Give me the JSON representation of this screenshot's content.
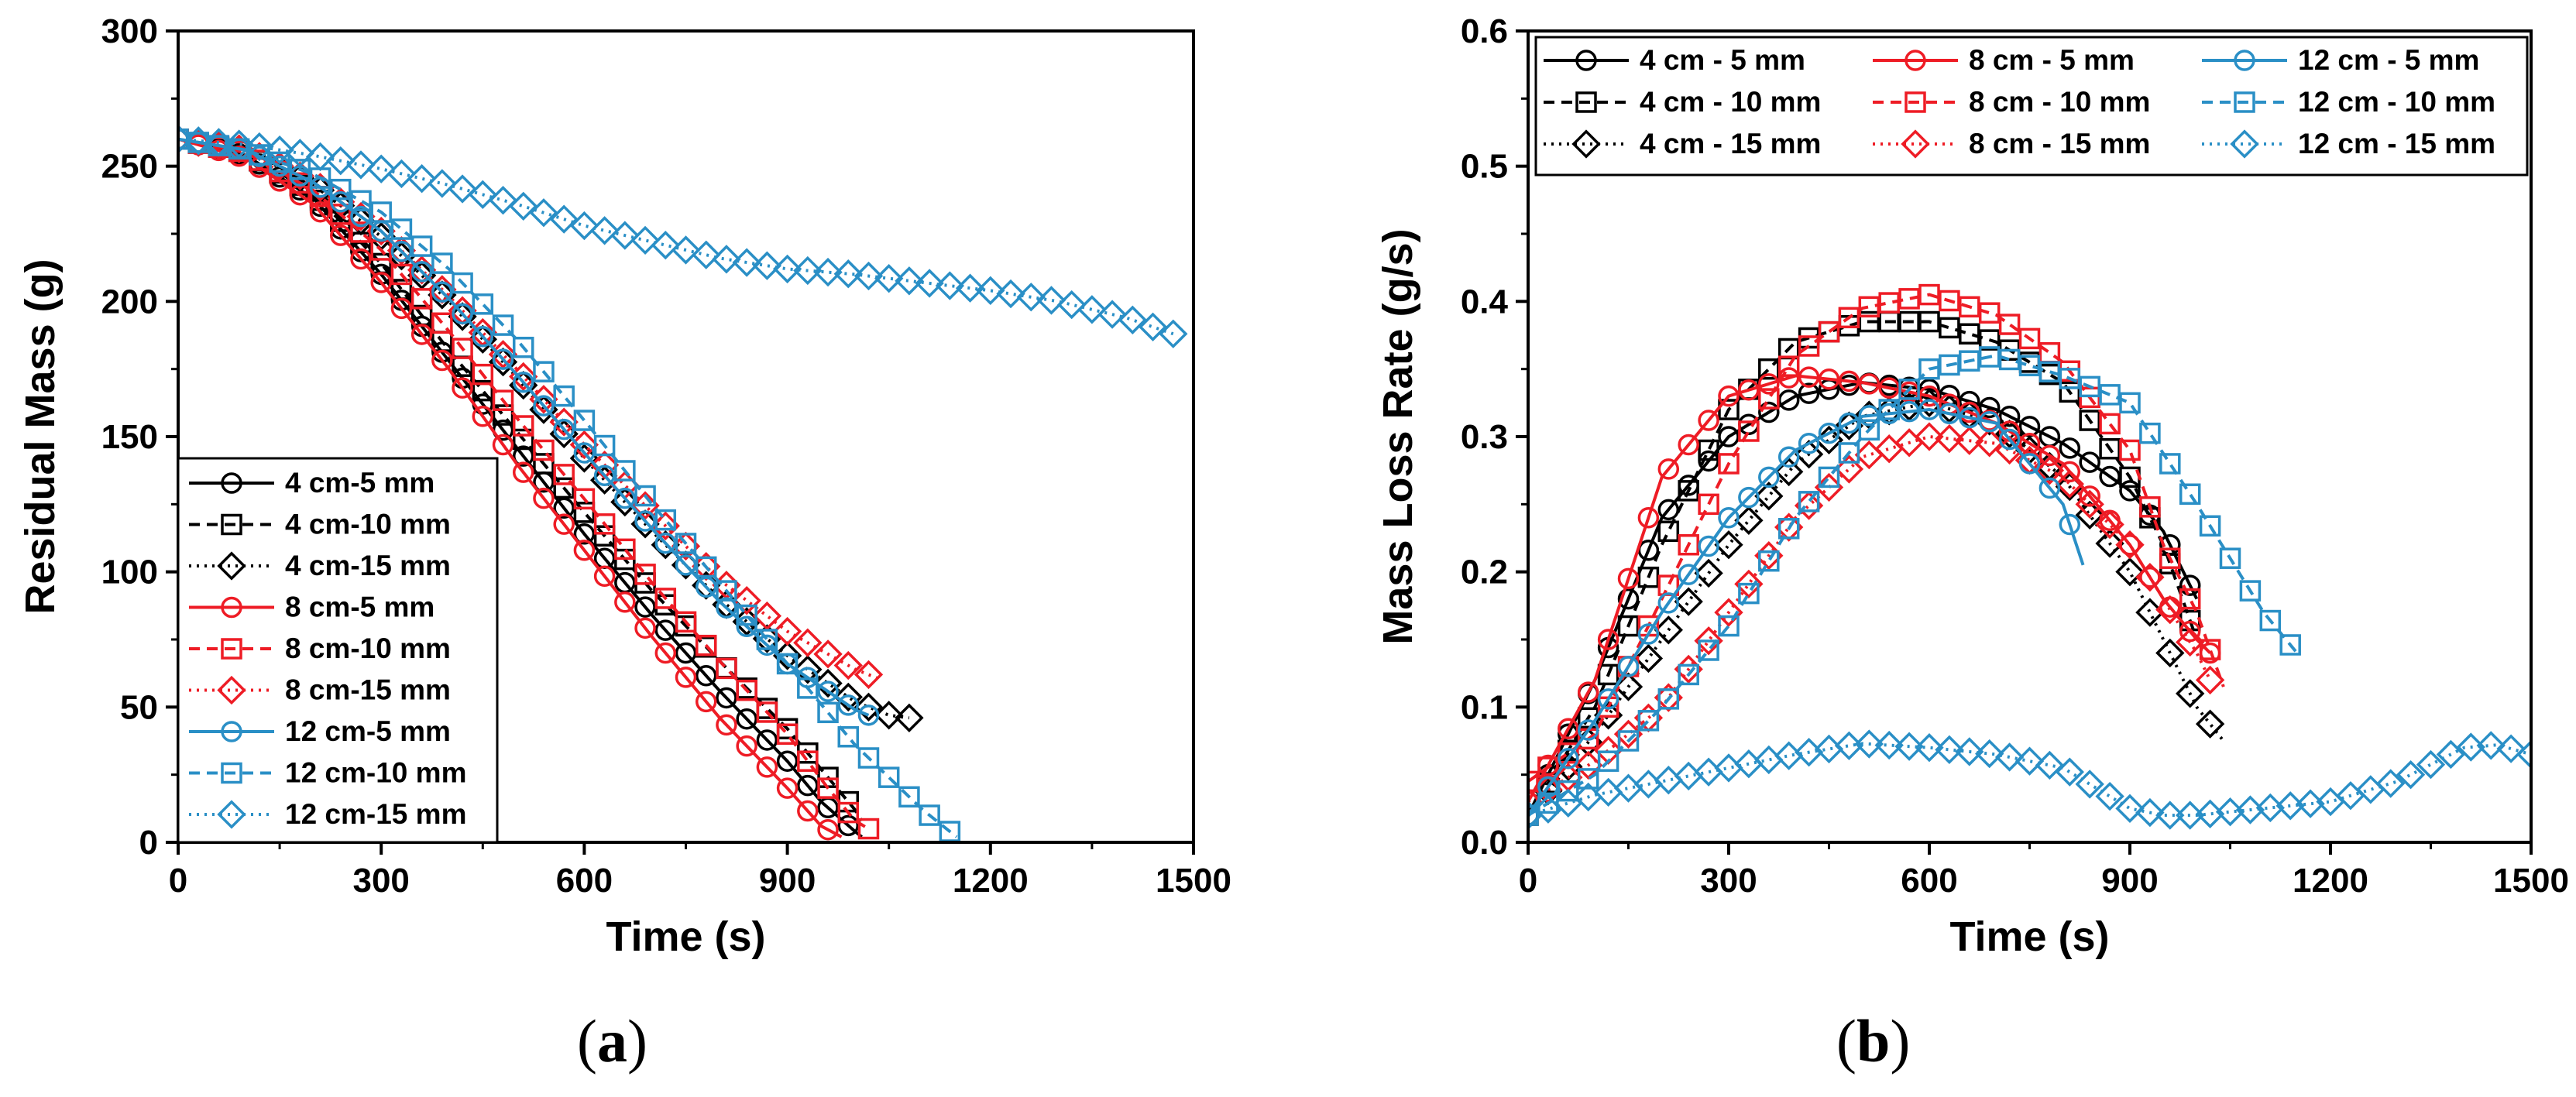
{
  "colors": {
    "black": "#000000",
    "red": "#ee1c25",
    "blue": "#2a8fc6"
  },
  "captions": {
    "a_open": "(",
    "a_letter": "a",
    "a_close": ")",
    "b_open": "(",
    "b_letter": "b",
    "b_close": ")"
  },
  "chart_data": [
    {
      "panel": "a",
      "type": "line",
      "xlabel": "Time (s)",
      "ylabel": "Residual Mass (g)",
      "xlim": [
        0,
        1500
      ],
      "ylim": [
        0,
        300
      ],
      "xticks": [
        0,
        300,
        600,
        900,
        1200,
        1500
      ],
      "yticks": [
        0,
        50,
        100,
        150,
        200,
        250,
        300
      ],
      "legend_position": "bottom-left",
      "series": [
        {
          "name": "4 cm-5 mm",
          "color": "black",
          "marker": "circle",
          "dash": "solid",
          "x": [
            0,
            100,
            200,
            300,
            400,
            500,
            600,
            700,
            800,
            900,
            950,
            1000,
            1010
          ],
          "y": [
            260,
            254,
            238,
            210,
            178,
            146,
            114,
            84,
            56,
            30,
            15,
            4,
            2
          ]
        },
        {
          "name": "4 cm-10 mm",
          "color": "black",
          "marker": "square",
          "dash": "dashed",
          "x": [
            0,
            100,
            200,
            300,
            400,
            500,
            600,
            700,
            800,
            900,
            950,
            1000,
            1010
          ],
          "y": [
            260,
            255,
            240,
            214,
            182,
            152,
            122,
            93,
            67,
            42,
            27,
            12,
            8
          ]
        },
        {
          "name": "4 cm-15 mm",
          "color": "black",
          "marker": "diamond",
          "dash": "dotted",
          "x": [
            0,
            100,
            200,
            300,
            400,
            500,
            600,
            700,
            800,
            900,
            1000,
            1050,
            1080
          ],
          "y": [
            260,
            256,
            243,
            224,
            200,
            172,
            142,
            115,
            90,
            69,
            52,
            47,
            46
          ]
        },
        {
          "name": "8 cm-5 mm",
          "color": "red",
          "marker": "circle",
          "dash": "solid",
          "x": [
            0,
            100,
            200,
            300,
            400,
            500,
            600,
            700,
            800,
            900,
            950,
            980
          ],
          "y": [
            260,
            253,
            236,
            207,
            175,
            140,
            108,
            76,
            46,
            20,
            6,
            2
          ]
        },
        {
          "name": "8 cm-10 mm",
          "color": "red",
          "marker": "square",
          "dash": "dashed",
          "x": [
            0,
            100,
            200,
            300,
            400,
            500,
            600,
            700,
            800,
            900,
            960,
            1000,
            1020
          ],
          "y": [
            260,
            255,
            241,
            219,
            189,
            157,
            127,
            96,
            67,
            40,
            20,
            8,
            5
          ]
        },
        {
          "name": "8 cm-15 mm",
          "color": "red",
          "marker": "diamond",
          "dash": "dotted",
          "x": [
            0,
            100,
            200,
            300,
            400,
            500,
            600,
            700,
            800,
            900,
            1000,
            1040
          ],
          "y": [
            260,
            256,
            244,
            226,
            202,
            175,
            147,
            122,
            97,
            78,
            64,
            60
          ]
        },
        {
          "name": "12 cm-5 mm",
          "color": "blue",
          "marker": "circle",
          "dash": "solid",
          "x": [
            0,
            100,
            200,
            300,
            400,
            500,
            600,
            700,
            800,
            900,
            1000,
            1020
          ],
          "y": [
            260,
            256,
            244,
            226,
            201,
            173,
            144,
            116,
            89,
            66,
            49,
            47
          ]
        },
        {
          "name": "12 cm-10 mm",
          "color": "blue",
          "marker": "square",
          "dash": "dashed",
          "x": [
            0,
            100,
            200,
            300,
            400,
            500,
            600,
            700,
            800,
            900,
            1000,
            1100,
            1150
          ],
          "y": [
            260,
            256,
            247,
            233,
            212,
            186,
            156,
            125,
            96,
            66,
            36,
            12,
            2
          ]
        },
        {
          "name": "12 cm-15 mm",
          "color": "blue",
          "marker": "diamond",
          "dash": "dotted",
          "x": [
            0,
            100,
            200,
            300,
            400,
            500,
            600,
            700,
            800,
            900,
            1000,
            1100,
            1200,
            1300,
            1400,
            1470
          ],
          "y": [
            260,
            258,
            254,
            249,
            243,
            236,
            228,
            222,
            216,
            212,
            210,
            207,
            204,
            200,
            194,
            188
          ]
        }
      ]
    },
    {
      "panel": "b",
      "type": "line",
      "xlabel": "Time (s)",
      "ylabel": "Mass Loss Rate (g/s)",
      "xlim": [
        0,
        1500
      ],
      "ylim": [
        0,
        0.6
      ],
      "xticks": [
        0,
        300,
        600,
        900,
        1200,
        1500
      ],
      "yticks": [
        0.0,
        0.1,
        0.2,
        0.3,
        0.4,
        0.5,
        0.6
      ],
      "legend_position": "top",
      "series": [
        {
          "name": "4 cm - 5 mm",
          "color": "black",
          "marker": "circle",
          "dash": "solid",
          "x": [
            0,
            100,
            200,
            300,
            400,
            500,
            600,
            700,
            800,
            900,
            950,
            1000
          ],
          "y": [
            0.02,
            0.12,
            0.24,
            0.3,
            0.33,
            0.34,
            0.335,
            0.32,
            0.295,
            0.26,
            0.23,
            0.18
          ]
        },
        {
          "name": "4 cm - 10 mm",
          "color": "black",
          "marker": "square",
          "dash": "dashed",
          "x": [
            0,
            100,
            200,
            300,
            400,
            500,
            600,
            700,
            800,
            900,
            950,
            1000
          ],
          "y": [
            0.02,
            0.1,
            0.22,
            0.32,
            0.37,
            0.385,
            0.385,
            0.37,
            0.34,
            0.27,
            0.22,
            0.15
          ]
        },
        {
          "name": "4 cm - 15 mm",
          "color": "black",
          "marker": "diamond",
          "dash": "dotted",
          "x": [
            0,
            100,
            200,
            300,
            400,
            500,
            600,
            700,
            800,
            900,
            950,
            1000,
            1040
          ],
          "y": [
            0.02,
            0.08,
            0.15,
            0.22,
            0.28,
            0.315,
            0.325,
            0.31,
            0.27,
            0.2,
            0.15,
            0.1,
            0.075
          ]
        },
        {
          "name": "8 cm - 5 mm",
          "color": "red",
          "marker": "circle",
          "dash": "solid",
          "x": [
            0,
            100,
            200,
            300,
            400,
            500,
            600,
            700,
            800,
            900,
            950,
            1000,
            1020
          ],
          "y": [
            0.03,
            0.12,
            0.27,
            0.33,
            0.345,
            0.34,
            0.33,
            0.31,
            0.28,
            0.22,
            0.18,
            0.15,
            0.14
          ]
        },
        {
          "name": "8 cm - 10 mm",
          "color": "red",
          "marker": "square",
          "dash": "dashed",
          "x": [
            0,
            100,
            200,
            300,
            400,
            500,
            600,
            700,
            800,
            900,
            950,
            1000,
            1040
          ],
          "y": [
            0.045,
            0.08,
            0.18,
            0.28,
            0.36,
            0.395,
            0.405,
            0.39,
            0.355,
            0.29,
            0.22,
            0.17,
            0.115
          ]
        },
        {
          "name": "8 cm - 15 mm",
          "color": "red",
          "marker": "diamond",
          "dash": "dotted",
          "x": [
            0,
            100,
            200,
            300,
            400,
            500,
            600,
            700,
            800,
            900,
            950,
            1000,
            1020
          ],
          "y": [
            0.03,
            0.06,
            0.1,
            0.17,
            0.24,
            0.285,
            0.3,
            0.295,
            0.27,
            0.22,
            0.18,
            0.14,
            0.12
          ]
        },
        {
          "name": "12 cm - 5 mm",
          "color": "blue",
          "marker": "circle",
          "dash": "solid",
          "x": [
            0,
            100,
            200,
            300,
            400,
            500,
            600,
            700,
            800,
            830
          ],
          "y": [
            0.02,
            0.09,
            0.17,
            0.24,
            0.29,
            0.315,
            0.32,
            0.31,
            0.25,
            0.205
          ]
        },
        {
          "name": "12 cm - 10 mm",
          "color": "blue",
          "marker": "square",
          "dash": "dashed",
          "x": [
            0,
            100,
            200,
            300,
            400,
            500,
            600,
            700,
            800,
            900,
            1000,
            1100,
            1150
          ],
          "y": [
            0.02,
            0.05,
            0.1,
            0.16,
            0.24,
            0.3,
            0.35,
            0.36,
            0.345,
            0.325,
            0.25,
            0.17,
            0.14
          ]
        },
        {
          "name": "12 cm - 15 mm",
          "color": "blue",
          "marker": "diamond",
          "dash": "dotted",
          "x": [
            0,
            100,
            200,
            300,
            400,
            500,
            600,
            700,
            800,
            850,
            900,
            950,
            1000,
            1100,
            1200,
            1300,
            1400,
            1450,
            1500
          ],
          "y": [
            0.02,
            0.035,
            0.045,
            0.055,
            0.065,
            0.073,
            0.07,
            0.065,
            0.055,
            0.04,
            0.025,
            0.02,
            0.02,
            0.025,
            0.03,
            0.045,
            0.07,
            0.072,
            0.065
          ]
        }
      ]
    }
  ]
}
